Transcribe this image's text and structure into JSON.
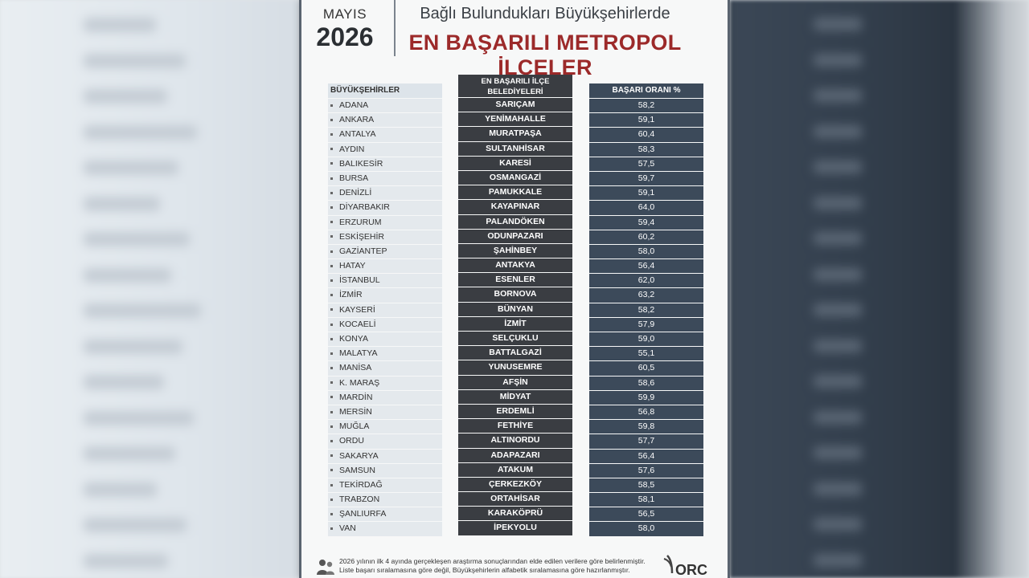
{
  "header": {
    "month": "MAYIS",
    "year": "2026",
    "subtitle": "Bağlı Bulundukları Büyükşehirlerde",
    "title": "EN BAŞARILI METROPOL İLÇELER"
  },
  "columns": {
    "city": "BÜYÜKŞEHİRLER",
    "district": "EN BAŞARILI İLÇE BELEDİYELERİ",
    "rate": "BAŞARI ORANI %"
  },
  "rows": [
    {
      "city": "ADANA",
      "district": "SARIÇAM",
      "rate": "58,2"
    },
    {
      "city": "ANKARA",
      "district": "YENİMAHALLE",
      "rate": "59,1"
    },
    {
      "city": "ANTALYA",
      "district": "MURATPAŞA",
      "rate": "60,4"
    },
    {
      "city": "AYDIN",
      "district": "SULTANHİSAR",
      "rate": "58,3"
    },
    {
      "city": "BALIKESİR",
      "district": "KARESİ",
      "rate": "57,5"
    },
    {
      "city": "BURSA",
      "district": "OSMANGAZİ",
      "rate": "59,7"
    },
    {
      "city": "DENİZLİ",
      "district": "PAMUKKALE",
      "rate": "59,1"
    },
    {
      "city": "DİYARBAKIR",
      "district": "KAYAPINAR",
      "rate": "64,0"
    },
    {
      "city": "ERZURUM",
      "district": "PALANDÖKEN",
      "rate": "59,4"
    },
    {
      "city": "ESKİŞEHİR",
      "district": "ODUNPAZARI",
      "rate": "60,2"
    },
    {
      "city": "GAZİANTEP",
      "district": "ŞAHİNBEY",
      "rate": "58,0"
    },
    {
      "city": "HATAY",
      "district": "ANTAKYA",
      "rate": "56,4"
    },
    {
      "city": "İSTANBUL",
      "district": "ESENLER",
      "rate": "62,0"
    },
    {
      "city": "İZMİR",
      "district": "BORNOVA",
      "rate": "63,2"
    },
    {
      "city": "KAYSERİ",
      "district": "BÜNYAN",
      "rate": "58,2"
    },
    {
      "city": "KOCAELİ",
      "district": "İZMİT",
      "rate": "57,9"
    },
    {
      "city": "KONYA",
      "district": "SELÇUKLU",
      "rate": "59,0"
    },
    {
      "city": "MALATYA",
      "district": "BATTALGAZİ",
      "rate": "55,1"
    },
    {
      "city": "MANİSA",
      "district": "YUNUSEMRE",
      "rate": "60,5"
    },
    {
      "city": "K. MARAŞ",
      "district": "AFŞİN",
      "rate": "58,6"
    },
    {
      "city": "MARDİN",
      "district": "MİDYAT",
      "rate": "59,9"
    },
    {
      "city": "MERSİN",
      "district": "ERDEMLİ",
      "rate": "56,8"
    },
    {
      "city": "MUĞLA",
      "district": "FETHİYE",
      "rate": "59,8"
    },
    {
      "city": "ORDU",
      "district": "ALTINORDU",
      "rate": "57,7"
    },
    {
      "city": "SAKARYA",
      "district": "ADAPAZARI",
      "rate": "56,4"
    },
    {
      "city": "SAMSUN",
      "district": "ATAKUM",
      "rate": "57,6"
    },
    {
      "city": "TEKİRDAĞ",
      "district": "ÇERKEZKÖY",
      "rate": "58,5"
    },
    {
      "city": "TRABZON",
      "district": "ORTAHİSAR",
      "rate": "58,1"
    },
    {
      "city": "ŞANLIURFA",
      "district": "KARAKÖPRÜ",
      "rate": "56,5"
    },
    {
      "city": "VAN",
      "district": "İPEKYOLU",
      "rate": "58,0"
    }
  ],
  "footer": {
    "note_line1": "2026 yılının ilk 4 ayında gerçekleşen araştırma sonuçlarından elde edilen verilere göre belirlenmiştir.",
    "note_line2": "Liste başarı sıralamasına göre değil, Büyükşehirlerin alfabetik sıralamasına göre hazırlanmıştır.",
    "logo_text": "ORC"
  },
  "colors": {
    "title": "#9c2a2a",
    "district_column": "#3a3d42",
    "rate_column": "#3c4a5a",
    "city_column": "#e4e9ed"
  }
}
